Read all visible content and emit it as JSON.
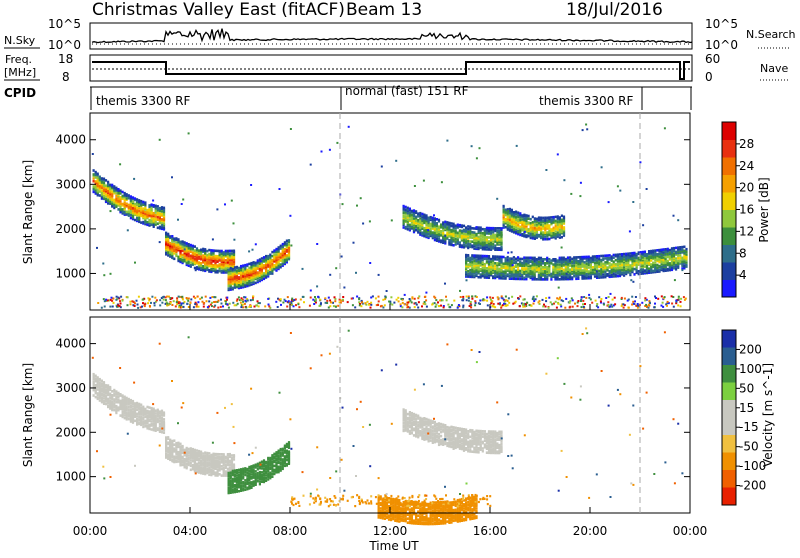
{
  "header": {
    "title": "Christmas Valley East (fitACF)",
    "beam": "Beam 13",
    "date": "18/Jul/2016"
  },
  "sky_panel": {
    "left_label": "N.Sky",
    "right_label": "N.Search",
    "left_ticks": [
      "10^5",
      "10^0"
    ],
    "right_ticks": [
      "10^5",
      "10^0"
    ]
  },
  "freq_panel": {
    "left_label_1": "Freq.",
    "left_label_2": "[MHz]",
    "right_label": "Nave",
    "left_ticks": [
      "18",
      "8"
    ],
    "right_ticks": [
      "60",
      "0"
    ]
  },
  "cpid": {
    "label": "CPID",
    "segments": [
      {
        "text": "themis 3300 RF",
        "start_hour": 0,
        "end_hour": 10
      },
      {
        "text": "normal (fast) 151 RF",
        "start_hour": 10,
        "end_hour": 22
      },
      {
        "text": "themis 3300 RF",
        "start_hour": 22,
        "end_hour": 24
      }
    ]
  },
  "range_axis": {
    "label": "Slant Range [km]",
    "ticks": [
      "1000",
      "2000",
      "3000",
      "4000"
    ],
    "values": [
      1000,
      2000,
      3000,
      4000
    ],
    "range": [
      180,
      4600
    ]
  },
  "time_axis": {
    "label": "Time UT",
    "ticks": [
      "00:00",
      "04:00",
      "08:00",
      "12:00",
      "16:00",
      "20:00",
      "00:00"
    ],
    "hours": [
      0,
      4,
      8,
      12,
      16,
      20,
      24
    ],
    "range": [
      0,
      24
    ]
  },
  "power_colorbar": {
    "label": "Power [dB]",
    "ticks": [
      "4",
      "8",
      "12",
      "16",
      "20",
      "24",
      "28"
    ],
    "colors": [
      "#1a1aff",
      "#1c3fa0",
      "#2e6e8a",
      "#3c8f3c",
      "#8fc83c",
      "#f0d000",
      "#f5a000",
      "#f07000",
      "#e83010",
      "#dd0000"
    ]
  },
  "velocity_colorbar": {
    "label": "Velocity [m s^-1]",
    "ticks": [
      "200",
      "100",
      "50",
      "15",
      "-15",
      "-50",
      "-100",
      "-200"
    ],
    "colors": [
      "#1a2fa8",
      "#2a5e90",
      "#3f8f3f",
      "#7cd040",
      "#c8c8c0",
      "#c8c8c0",
      "#f0c040",
      "#f09000",
      "#f06000",
      "#e82000"
    ]
  },
  "chart_data": {
    "type": "heatmap",
    "x_range": [
      0,
      24
    ],
    "y_range": [
      180,
      4600
    ],
    "mode_change_hours": [
      10,
      22
    ],
    "power_features": [
      {
        "hour_start": 0.1,
        "hour_end": 3.0,
        "range_start": 3100,
        "range_end": 2250,
        "peak_db": 24
      },
      {
        "hour_start": 3.0,
        "hour_end": 5.8,
        "range_start": 1700,
        "range_end": 1300,
        "peak_db": 28
      },
      {
        "hour_start": 5.5,
        "hour_end": 8.0,
        "range_start": 900,
        "range_end": 1600,
        "peak_db": 26
      },
      {
        "hour_start": 12.5,
        "hour_end": 16.5,
        "range_start": 2300,
        "range_end": 1800,
        "peak_db": 16
      },
      {
        "hour_start": 15.0,
        "hour_end": 23.9,
        "range_start": 1200,
        "range_end": 1400,
        "peak_db": 16
      },
      {
        "hour_start": 16.5,
        "hour_end": 19.0,
        "range_start": 2300,
        "range_end": 2100,
        "peak_db": 20
      }
    ],
    "velocity_features": [
      {
        "hour_start": 0.1,
        "hour_end": 3.0,
        "range_start": 3100,
        "range_end": 2250,
        "velocity": 0
      },
      {
        "hour_start": 3.0,
        "hour_end": 5.8,
        "range_start": 1700,
        "range_end": 1300,
        "velocity": 0
      },
      {
        "hour_start": 5.5,
        "hour_end": 8.0,
        "range_start": 900,
        "range_end": 1600,
        "velocity": 40
      },
      {
        "hour_start": 11.5,
        "hour_end": 15.5,
        "range_start": 350,
        "range_end": 350,
        "velocity": -60
      },
      {
        "hour_start": 12.5,
        "hour_end": 16.5,
        "range_start": 2300,
        "range_end": 1800,
        "velocity": 0
      }
    ]
  }
}
